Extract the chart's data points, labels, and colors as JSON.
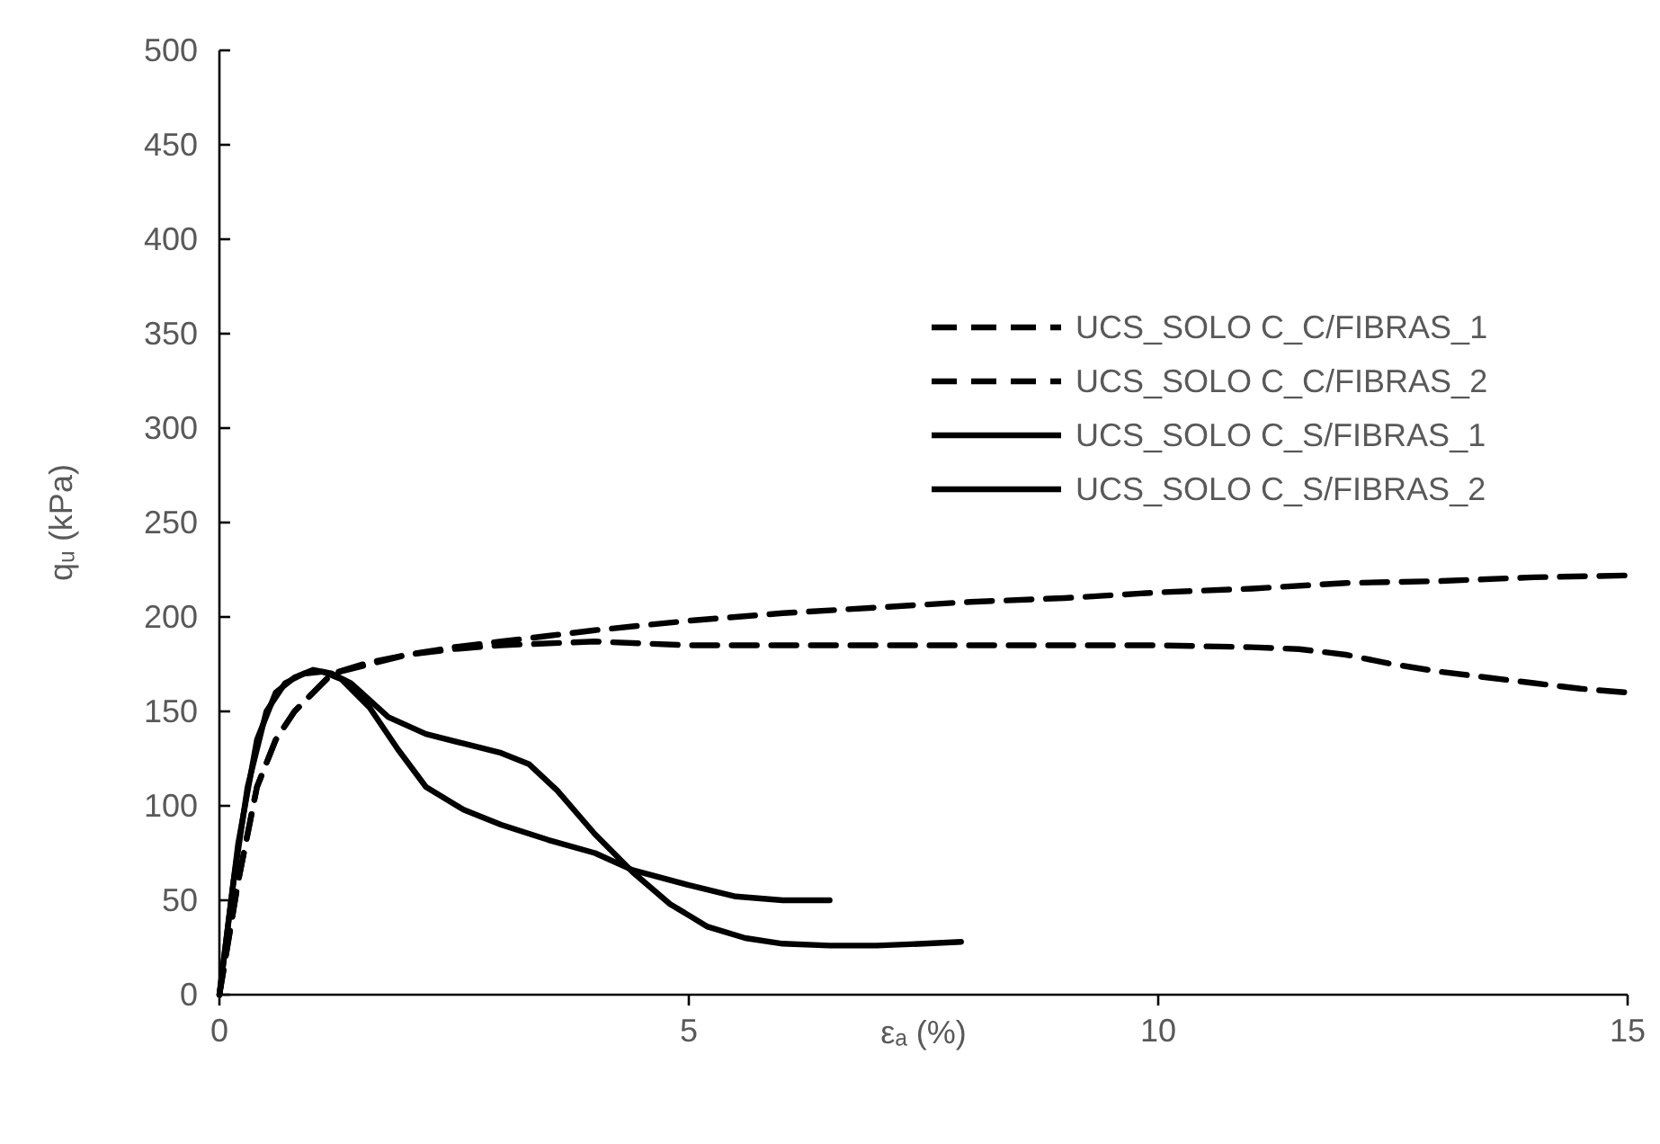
{
  "chart_data": {
    "type": "line",
    "xlabel": "εₐ (%)",
    "ylabel": "qᵤ (kPa)",
    "xlim": [
      0,
      15
    ],
    "xticks": [
      0,
      5,
      10,
      15
    ],
    "ylim": [
      0,
      500
    ],
    "yticks": [
      0,
      50,
      100,
      150,
      200,
      250,
      300,
      350,
      400,
      450,
      500
    ],
    "grid": false,
    "legend": "top right",
    "marker": "none",
    "series": [
      {
        "name": "UCS_SOLO C_C/FIBRAS_1",
        "color": "#000000",
        "line_style": "dashed",
        "x": [
          0,
          0.2,
          0.4,
          0.6,
          0.8,
          1.0,
          1.2,
          1.6,
          2.0,
          2.5,
          3.0,
          3.5,
          4.0,
          5.0,
          6.0,
          7.0,
          8.0,
          9.0,
          10.0,
          11.0,
          12.0,
          13.0,
          14.0,
          15.0
        ],
        "values": [
          0,
          60,
          110,
          135,
          150,
          160,
          170,
          176,
          180,
          184,
          187,
          190,
          193,
          198,
          202,
          205,
          208,
          210,
          213,
          215,
          218,
          219,
          221,
          222
        ]
      },
      {
        "name": "UCS_SOLO C_C/FIBRAS_2",
        "color": "#000000",
        "line_style": "dashed",
        "x": [
          0,
          0.2,
          0.4,
          0.6,
          0.8,
          1.0,
          1.2,
          1.6,
          2.0,
          2.5,
          3.0,
          4.0,
          5.0,
          6.0,
          7.0,
          8.0,
          9.0,
          10.0,
          11.0,
          11.5,
          12.0,
          12.5,
          13.0,
          13.5,
          14.0,
          14.5,
          15.0
        ],
        "values": [
          0,
          60,
          110,
          135,
          150,
          160,
          170,
          175,
          180,
          183,
          185,
          187,
          185,
          185,
          185,
          185,
          185,
          185,
          184,
          183,
          180,
          175,
          171,
          168,
          165,
          162,
          160
        ]
      },
      {
        "name": "UCS_SOLO C_S/FIBRAS_1",
        "color": "#000000",
        "line_style": "solid",
        "x": [
          0,
          0.2,
          0.4,
          0.6,
          0.8,
          1.0,
          1.2,
          1.4,
          1.8,
          2.2,
          2.6,
          3.0,
          3.3,
          3.6,
          4.0,
          4.4,
          4.8,
          5.2,
          5.6,
          6.0,
          6.5,
          7.0,
          7.5,
          7.9
        ],
        "values": [
          0,
          80,
          135,
          160,
          168,
          172,
          170,
          165,
          147,
          138,
          133,
          128,
          122,
          108,
          85,
          65,
          48,
          36,
          30,
          27,
          26,
          26,
          27,
          28
        ]
      },
      {
        "name": "UCS_SOLO C_S/FIBRAS_2",
        "color": "#000000",
        "line_style": "solid",
        "x": [
          0,
          0.15,
          0.3,
          0.5,
          0.7,
          0.9,
          1.1,
          1.3,
          1.6,
          1.9,
          2.2,
          2.6,
          3.0,
          3.5,
          4.0,
          4.4,
          5.0,
          5.5,
          6.0,
          6.5
        ],
        "values": [
          0,
          60,
          110,
          150,
          165,
          170,
          171,
          167,
          152,
          130,
          110,
          98,
          90,
          82,
          75,
          66,
          58,
          52,
          50,
          50
        ]
      }
    ]
  }
}
